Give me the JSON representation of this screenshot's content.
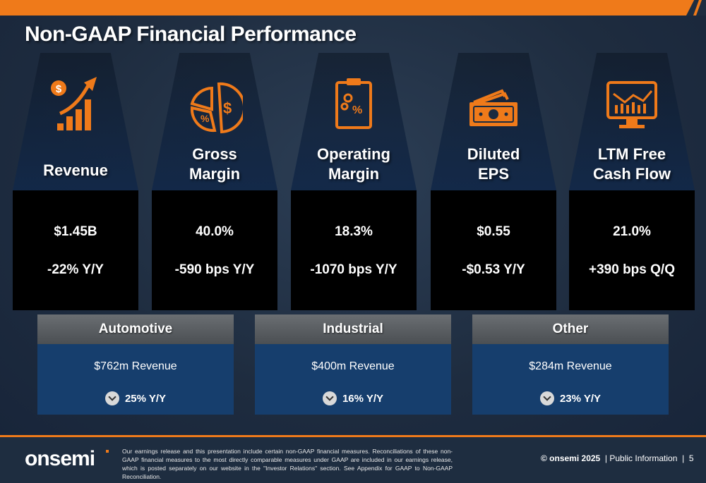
{
  "slide": {
    "title": "Non-GAAP Financial Performance",
    "accent_color": "#ef7a1a",
    "panel_color": "#163e6d"
  },
  "metrics": [
    {
      "label": "Revenue",
      "value": "$1.45B",
      "change": "-22% Y/Y",
      "icon": "revenue-growth-icon"
    },
    {
      "label": "Gross Margin",
      "value": "40.0%",
      "change": "-590 bps Y/Y",
      "icon": "pie-chart-dollar-icon"
    },
    {
      "label": "Operating Margin",
      "value": "18.3%",
      "change": "-1070 bps Y/Y",
      "icon": "clipboard-percent-icon"
    },
    {
      "label": "Diluted EPS",
      "value": "$0.55",
      "change": "-$0.53 Y/Y",
      "icon": "cash-icon"
    },
    {
      "label": "LTM Free Cash Flow",
      "value": "21.0%",
      "change": "+390 bps Q/Q",
      "icon": "monitor-chart-icon"
    }
  ],
  "label_lines": [
    [
      "Revenue"
    ],
    [
      "Gross",
      "Margin"
    ],
    [
      "Operating",
      "Margin"
    ],
    [
      "Diluted",
      "EPS"
    ],
    [
      "LTM Free",
      "Cash Flow"
    ]
  ],
  "segments": [
    {
      "name": "Automotive",
      "revenue": "$762m Revenue",
      "change": "25% Y/Y",
      "icon": "chevron-down-icon"
    },
    {
      "name": "Industrial",
      "revenue": "$400m Revenue",
      "change": "16% Y/Y",
      "icon": "chevron-down-icon"
    },
    {
      "name": "Other",
      "revenue": "$284m Revenue",
      "change": "23% Y/Y",
      "icon": "chevron-down-icon"
    }
  ],
  "footer": {
    "logo": "onsemi",
    "disclaimer": "Our earnings release and this presentation include certain non-GAAP financial measures. Reconciliations of these non-GAAP financial measures to the most directly comparable measures under GAAP are included in our earnings release, which is posted separately on our website in the \"Investor Relations\" section. See Appendix for GAAP to Non-GAAP Reconciliation.",
    "copyright": "© onsemi 2025",
    "classification": "Public Information",
    "page_number": "5"
  }
}
